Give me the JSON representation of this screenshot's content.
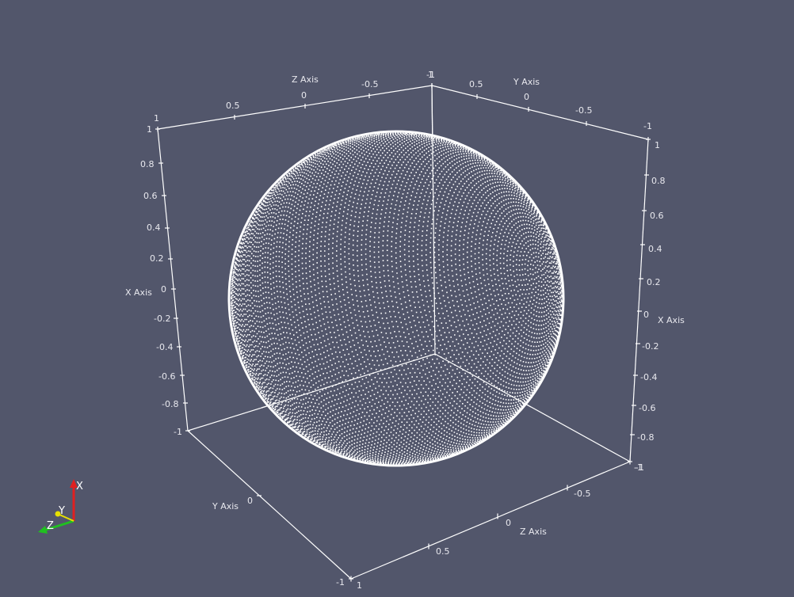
{
  "view": {
    "background_color": "#52566b",
    "foreground_color": "#ffffff",
    "representation": "point cloud sphere"
  },
  "cube_axes": {
    "x_axis_title": "X Axis",
    "y_axis_title": "Y Axis",
    "z_axis_title": "Z Axis",
    "x_left_ticks": [
      "1",
      "0.8",
      "0.6",
      "0.4",
      "0.2",
      "0",
      "-0.2",
      "-0.4",
      "-0.6",
      "-0.8",
      "-1"
    ],
    "x_right_ticks": [
      "1",
      "0.8",
      "0.6",
      "0.4",
      "0.2",
      "0",
      "-0.2",
      "-0.4",
      "-0.6",
      "-0.8",
      "-1"
    ],
    "z_top_ticks": [
      "1",
      "0.5",
      "0",
      "-0.5",
      "-1"
    ],
    "y_top_ticks": [
      "1",
      "0.5",
      "0",
      "-0.5",
      "-1"
    ],
    "y_bottom_ticks": [
      "-1",
      "0"
    ],
    "z_bottom_ticks": [
      "1",
      "0.5",
      "0",
      "-0.5",
      "-1"
    ]
  },
  "orientation_axes": {
    "x_label": "X",
    "y_label": "Y",
    "z_label": "Z",
    "x_color": "#e02020",
    "y_color": "#e6e000",
    "z_color": "#20c020"
  }
}
